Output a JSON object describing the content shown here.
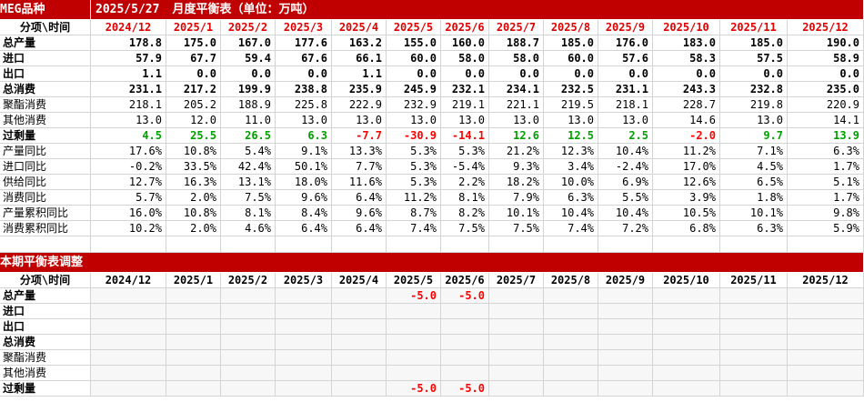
{
  "table1": {
    "brand": "MEG品种",
    "date": "2025/5/27",
    "title": "月度平衡表（单位：万吨）",
    "header": "分项\\时间",
    "columns": [
      "2024/12",
      "2025/1",
      "2025/2",
      "2025/3",
      "2025/4",
      "2025/5",
      "2025/6",
      "2025/7",
      "2025/8",
      "2025/9",
      "2025/10",
      "2025/11",
      "2025/12"
    ],
    "rows": [
      {
        "label": "总产量",
        "values": [
          "178.8",
          "175.0",
          "167.0",
          "177.6",
          "163.2",
          "155.0",
          "160.0",
          "188.7",
          "185.0",
          "176.0",
          "183.0",
          "185.0",
          "190.0"
        ]
      },
      {
        "label": "进口",
        "values": [
          "57.9",
          "67.7",
          "59.4",
          "67.6",
          "66.1",
          "60.0",
          "58.0",
          "58.0",
          "60.0",
          "57.6",
          "58.3",
          "57.5",
          "58.9"
        ]
      },
      {
        "label": "出口",
        "values": [
          "1.1",
          "0.0",
          "0.0",
          "0.0",
          "1.1",
          "0.0",
          "0.0",
          "0.0",
          "0.0",
          "0.0",
          "0.0",
          "0.0",
          "0.0"
        ]
      },
      {
        "label": "总消费",
        "values": [
          "231.1",
          "217.2",
          "199.9",
          "238.8",
          "235.9",
          "245.9",
          "232.1",
          "234.1",
          "232.5",
          "231.1",
          "243.3",
          "232.8",
          "235.0"
        ]
      },
      {
        "label": "聚酯消费",
        "values": [
          "218.1",
          "205.2",
          "188.9",
          "225.8",
          "222.9",
          "232.9",
          "219.1",
          "221.1",
          "219.5",
          "218.1",
          "228.7",
          "219.8",
          "220.9"
        ]
      },
      {
        "label": "其他消费",
        "values": [
          "13.0",
          "12.0",
          "11.0",
          "13.0",
          "13.0",
          "13.0",
          "13.0",
          "13.0",
          "13.0",
          "13.0",
          "14.6",
          "13.0",
          "14.1"
        ]
      },
      {
        "label": "过剩量",
        "values": [
          "4.5",
          "25.5",
          "26.5",
          "6.3",
          "-7.7",
          "-30.9",
          "-14.1",
          "12.6",
          "12.5",
          "2.5",
          "-2.0",
          "9.7",
          "13.9"
        ]
      },
      {
        "label": "产量同比",
        "values": [
          "17.6%",
          "10.8%",
          "5.4%",
          "9.1%",
          "13.3%",
          "5.3%",
          "5.3%",
          "21.2%",
          "12.3%",
          "10.4%",
          "11.2%",
          "7.1%",
          "6.3%"
        ]
      },
      {
        "label": "进口同比",
        "values": [
          "-0.2%",
          "33.5%",
          "42.4%",
          "50.1%",
          "7.7%",
          "5.3%",
          "-5.4%",
          "9.3%",
          "3.4%",
          "-2.4%",
          "17.0%",
          "4.5%",
          "1.7%"
        ]
      },
      {
        "label": "供给同比",
        "values": [
          "12.7%",
          "16.3%",
          "13.1%",
          "18.0%",
          "11.6%",
          "5.3%",
          "2.2%",
          "18.2%",
          "10.0%",
          "6.9%",
          "12.6%",
          "6.5%",
          "5.1%"
        ]
      },
      {
        "label": "消费同比",
        "values": [
          "5.7%",
          "2.0%",
          "7.5%",
          "9.6%",
          "6.4%",
          "11.2%",
          "8.1%",
          "7.9%",
          "6.3%",
          "5.5%",
          "3.9%",
          "1.8%",
          "1.7%"
        ]
      },
      {
        "label": "产量累积同比",
        "values": [
          "16.0%",
          "10.8%",
          "8.1%",
          "8.4%",
          "9.6%",
          "8.7%",
          "8.2%",
          "10.1%",
          "10.4%",
          "10.4%",
          "10.5%",
          "10.1%",
          "9.8%"
        ]
      },
      {
        "label": "消费累积同比",
        "values": [
          "10.2%",
          "2.0%",
          "4.6%",
          "6.4%",
          "6.4%",
          "7.4%",
          "7.5%",
          "7.5%",
          "7.4%",
          "7.2%",
          "6.8%",
          "6.3%",
          "5.9%"
        ]
      }
    ]
  },
  "table2": {
    "title": "本期平衡表调整",
    "header": "分项\\时间",
    "columns": [
      "2024/12",
      "2025/1",
      "2025/2",
      "2025/3",
      "2025/4",
      "2025/5",
      "2025/6",
      "2025/7",
      "2025/8",
      "2025/9",
      "2025/10",
      "2025/11",
      "2025/12"
    ],
    "rows": [
      {
        "label": "总产量",
        "values": [
          null,
          null,
          null,
          null,
          null,
          "-5.0",
          "-5.0",
          null,
          null,
          null,
          null,
          null,
          null
        ]
      },
      {
        "label": "进口",
        "values": [
          null,
          null,
          null,
          null,
          null,
          null,
          null,
          null,
          null,
          null,
          null,
          null,
          null
        ]
      },
      {
        "label": "出口",
        "values": [
          null,
          null,
          null,
          null,
          null,
          null,
          null,
          null,
          null,
          null,
          null,
          null,
          null
        ]
      },
      {
        "label": "总消费",
        "values": [
          null,
          null,
          null,
          null,
          null,
          null,
          null,
          null,
          null,
          null,
          null,
          null,
          null
        ]
      },
      {
        "label": "聚酯消费",
        "values": [
          null,
          null,
          null,
          null,
          null,
          null,
          null,
          null,
          null,
          null,
          null,
          null,
          null
        ]
      },
      {
        "label": "其他消费",
        "values": [
          null,
          null,
          null,
          null,
          null,
          null,
          null,
          null,
          null,
          null,
          null,
          null,
          null
        ]
      },
      {
        "label": "过剩量",
        "values": [
          null,
          null,
          null,
          null,
          null,
          "-5.0",
          "-5.0",
          null,
          null,
          null,
          null,
          null,
          null
        ]
      }
    ]
  }
}
